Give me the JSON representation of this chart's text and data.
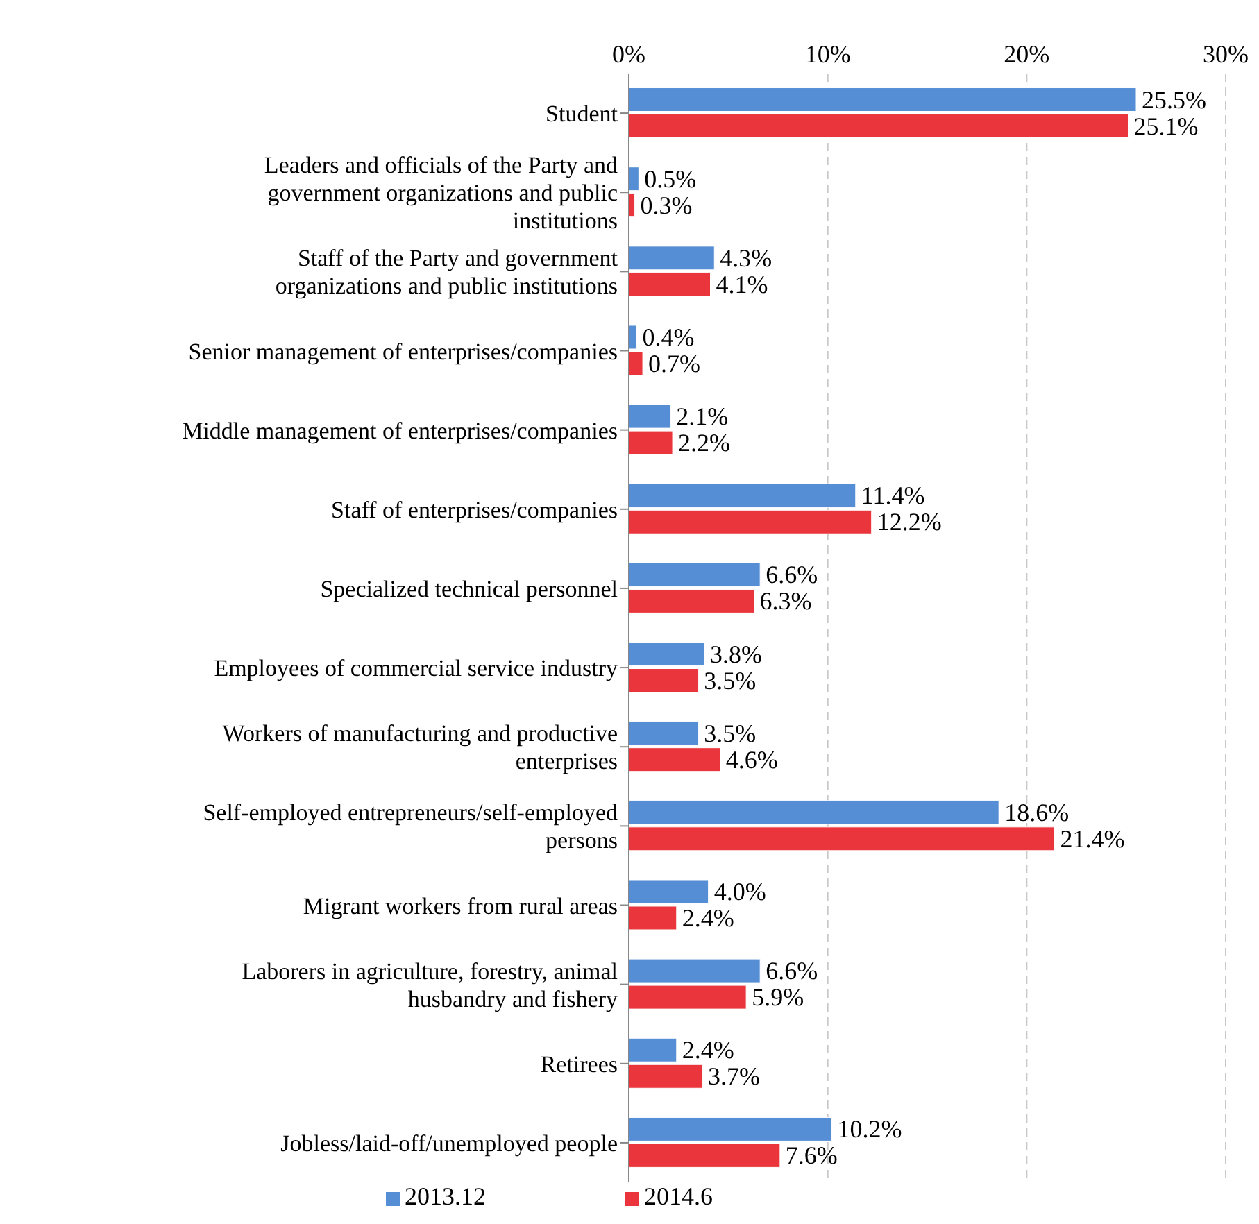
{
  "chart_data": {
    "type": "bar",
    "orientation": "horizontal",
    "categories": [
      "Student",
      "Leaders and officials of the Party and government organizations and public institutions",
      "Staff of the Party and government organizations and public institutions",
      "Senior management of enterprises/companies",
      "Middle management of enterprises/companies",
      "Staff of enterprises/companies",
      "Specialized technical personnel",
      "Employees of commercial service industry",
      "Workers of manufacturing and productive enterprises",
      "Self-employed entrepreneurs/self-employed persons",
      "Migrant workers from rural areas",
      "Laborers in agriculture, forestry, animal husbandry and fishery",
      "Retirees",
      "Jobless/laid-off/unemployed people"
    ],
    "series": [
      {
        "name": "2013.12",
        "color": "#558ed5",
        "values": [
          25.5,
          0.5,
          4.3,
          0.4,
          2.1,
          11.4,
          6.6,
          3.8,
          3.5,
          18.6,
          4.0,
          6.6,
          2.4,
          10.2
        ],
        "value_labels": [
          "25.5%",
          "0.5%",
          "4.3%",
          "0.4%",
          "2.1%",
          "11.4%",
          "6.6%",
          "3.8%",
          "3.5%",
          "18.6%",
          "4.0%",
          "6.6%",
          "2.4%",
          "10.2%"
        ]
      },
      {
        "name": "2014.6",
        "color": "#e9353b",
        "values": [
          25.1,
          0.3,
          4.1,
          0.7,
          2.2,
          12.2,
          6.3,
          3.5,
          4.6,
          21.4,
          2.4,
          5.9,
          3.7,
          7.6
        ],
        "value_labels": [
          "25.1%",
          "0.3%",
          "4.1%",
          "0.7%",
          "2.2%",
          "12.2%",
          "6.3%",
          "3.5%",
          "4.6%",
          "21.4%",
          "2.4%",
          "5.9%",
          "3.7%",
          "7.6%"
        ]
      }
    ],
    "xlim": [
      0,
      30
    ],
    "xticks": [
      {
        "value": 0,
        "label": "0%"
      },
      {
        "value": 10,
        "label": "10%"
      },
      {
        "value": 20,
        "label": "20%"
      },
      {
        "value": 30,
        "label": "30%"
      }
    ],
    "grid": "x",
    "legend": "bottom"
  }
}
